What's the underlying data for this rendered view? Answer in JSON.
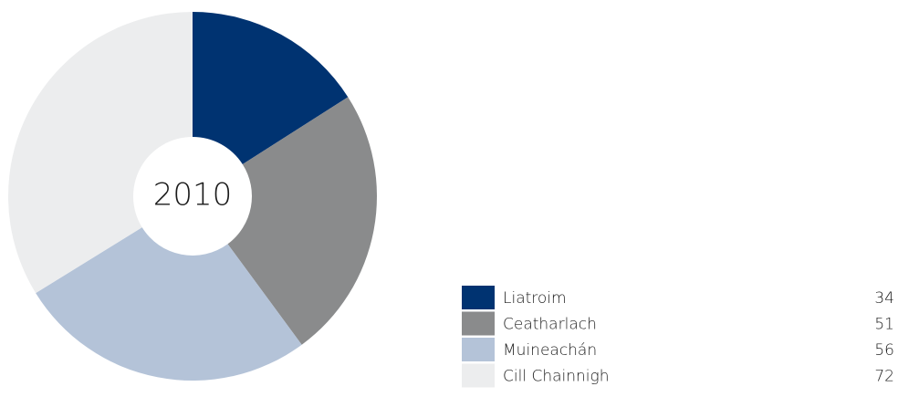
{
  "chart_data": {
    "type": "pie",
    "donut": true,
    "center_label": "2010",
    "categories": [
      "Liatroim",
      "Ceatharlach",
      "Muineachán",
      "Cill Chainnigh"
    ],
    "values": [
      34,
      51,
      56,
      72
    ],
    "colors": [
      "#003371",
      "#8a8b8c",
      "#b4c3d8",
      "#ecedee"
    ]
  }
}
